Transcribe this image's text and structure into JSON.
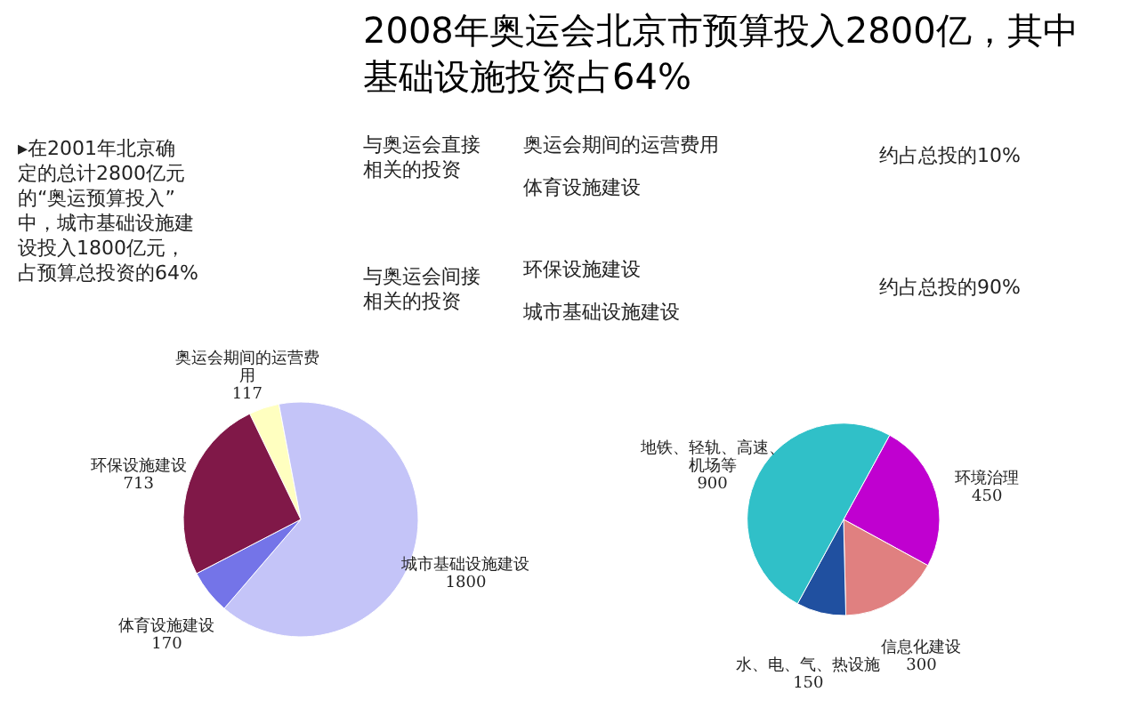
{
  "chart_data": [
    {
      "type": "other",
      "title": "2008年奥运会北京市预算投入2800亿，其中基础设施投资占64%",
      "annotations": [
        "▸在2001年北京确定的总计2800亿元的“奥运预算投入”中，城市基础设施建设投入1800亿元，占预算总投资的64%",
        "与奥运会直接相关的投资",
        "奥运会期间的运营费用",
        "体育设施建设",
        "约占总投的10%",
        "与奥运会间接相关的投资",
        "环保设施建设",
        "城市基础设施建设",
        "约占总投的90%"
      ]
    },
    {
      "type": "pie",
      "categories": [
        "奥运会期间的运营费用",
        "城市基础设施建设",
        "体育设施建设",
        "环保设施建设"
      ],
      "values": [
        117,
        1800,
        170,
        713
      ],
      "colors": [
        "#ffffc0",
        "#c4c4f8",
        "#7474e8",
        "#801848"
      ],
      "data_labels": true
    },
    {
      "type": "pie",
      "categories": [
        "环境治理",
        "信息化建设",
        "水、电、气、热设施",
        "地铁、轻轨、高速、机场等"
      ],
      "values": [
        450,
        300,
        150,
        900
      ],
      "colors": [
        "#c000d0",
        "#e08080",
        "#2050a0",
        "#30c0c8"
      ],
      "data_labels": true
    }
  ]
}
